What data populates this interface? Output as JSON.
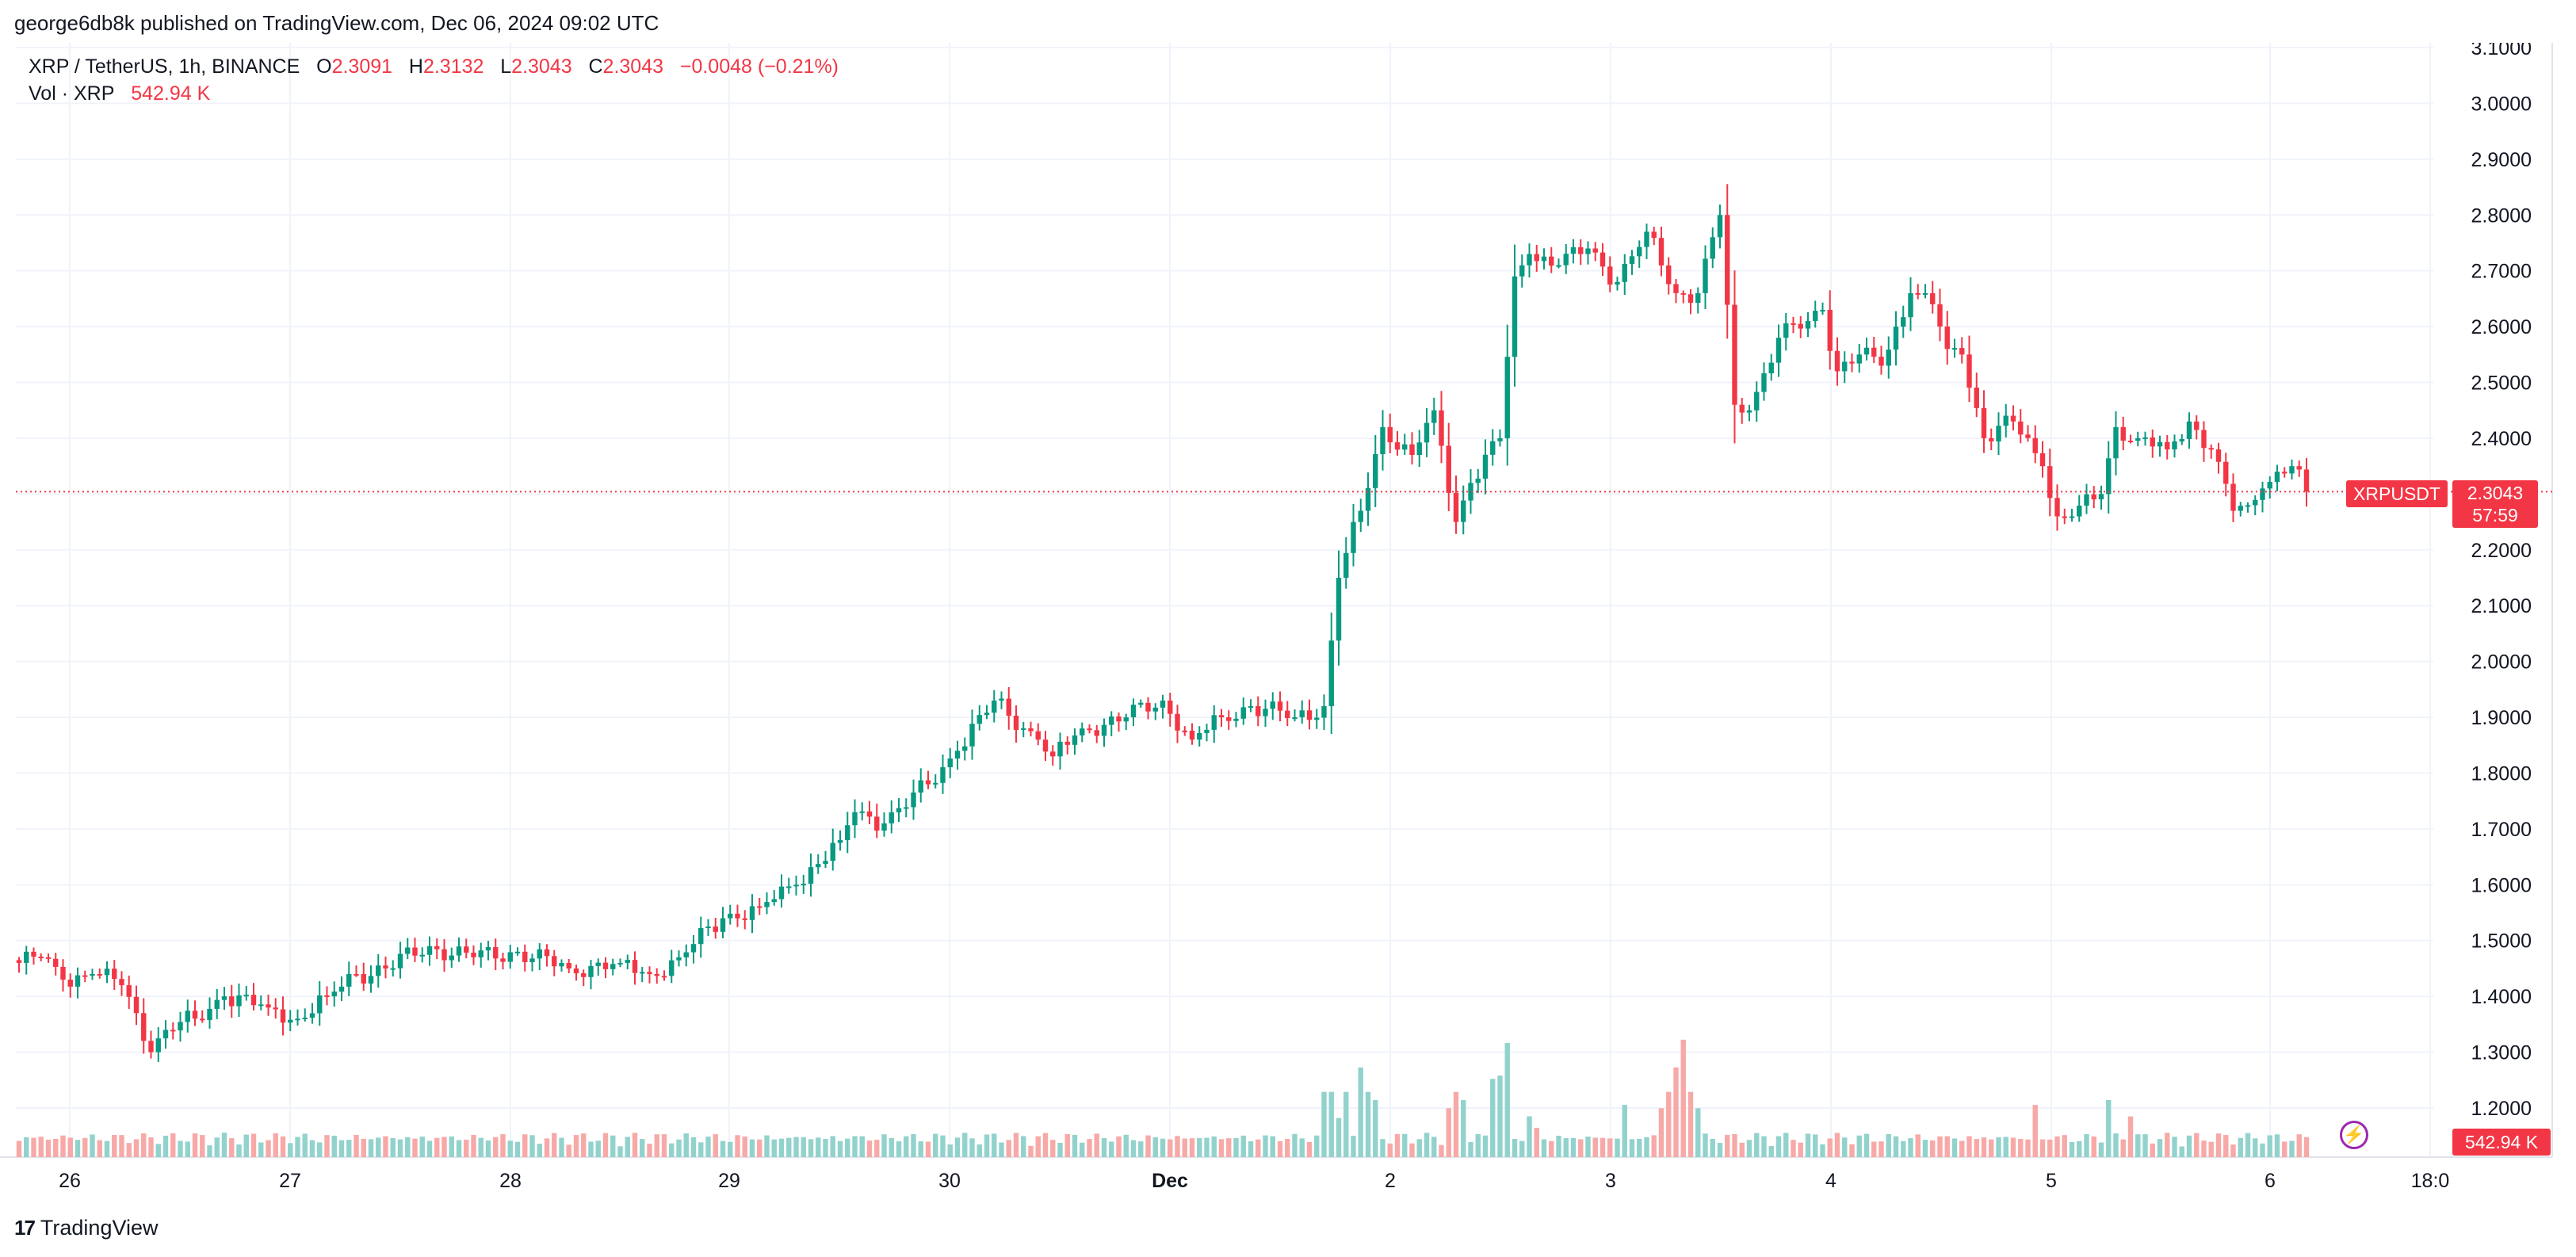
{
  "header": {
    "published": "george6db8k published on TradingView.com, Dec 06, 2024 09:02 UTC"
  },
  "legend": {
    "symbol": "XRP / TetherUS, 1h, BINANCE",
    "o_label": "O",
    "o": "2.3091",
    "h_label": "H",
    "h": "2.3132",
    "l_label": "L",
    "l": "2.3043",
    "c_label": "C",
    "c": "2.3043",
    "change": "−0.0048 (−0.21%)",
    "vol_label": "Vol · XRP",
    "vol_value": "542.94 K"
  },
  "tags": {
    "symbol": "XRPUSDT",
    "price": "2.3043",
    "countdown": "57:59",
    "volume": "542.94 K"
  },
  "footer": {
    "brand": "TradingView",
    "brand_mark": "17"
  },
  "colors": {
    "up": "#089981",
    "down": "#f23645",
    "vol_up": "#92d2cc",
    "vol_down": "#f7a9a7",
    "grid": "#f0f3fa",
    "text": "#131722"
  },
  "icons": [
    "flash-icon",
    "tradingview-logo-icon"
  ],
  "chart_data": {
    "type": "candlestick",
    "symbol": "XRP / TetherUS",
    "interval": "1h",
    "exchange": "BINANCE",
    "y_axis": {
      "position": "right",
      "ylim": [
        1.15,
        3.1
      ],
      "ticks": [
        3.1,
        3.0,
        2.9,
        2.8,
        2.7,
        2.6,
        2.5,
        2.4,
        2.3,
        2.2,
        2.1,
        2.0,
        1.9,
        1.8,
        1.7,
        1.6,
        1.5,
        1.4,
        1.3,
        1.2
      ],
      "tick_labels": [
        "3.1000",
        "3.0000",
        "2.9000",
        "2.8000",
        "2.7000",
        "2.6000",
        "2.5000",
        "2.4000",
        "2.3000",
        "2.2000",
        "2.1000",
        "2.0000",
        "1.9000",
        "1.8000",
        "1.7000",
        "1.6000",
        "1.5000",
        "1.4000",
        "1.3000",
        "1.2000"
      ]
    },
    "x_axis": {
      "tick_labels": [
        "26",
        "27",
        "28",
        "29",
        "30",
        "Dec",
        "2",
        "3",
        "4",
        "5",
        "6",
        "18:0"
      ],
      "bold_labels": [
        "Dec"
      ]
    },
    "last_price": 2.3043,
    "grid": true,
    "anchors": [
      [
        0,
        1.46
      ],
      [
        3,
        1.47
      ],
      [
        6,
        1.43
      ],
      [
        10,
        1.44
      ],
      [
        14,
        1.42
      ],
      [
        16,
        1.37
      ],
      [
        18,
        1.3
      ],
      [
        20,
        1.34
      ],
      [
        24,
        1.36
      ],
      [
        28,
        1.4
      ],
      [
        34,
        1.38
      ],
      [
        38,
        1.36
      ],
      [
        42,
        1.4
      ],
      [
        46,
        1.44
      ],
      [
        50,
        1.45
      ],
      [
        56,
        1.49
      ],
      [
        62,
        1.47
      ],
      [
        68,
        1.48
      ],
      [
        75,
        1.45
      ],
      [
        82,
        1.46
      ],
      [
        86,
        1.44
      ],
      [
        90,
        1.47
      ],
      [
        96,
        1.54
      ],
      [
        101,
        1.56
      ],
      [
        106,
        1.6
      ],
      [
        112,
        1.68
      ],
      [
        114,
        1.73
      ],
      [
        118,
        1.71
      ],
      [
        124,
        1.78
      ],
      [
        128,
        1.84
      ],
      [
        133,
        1.93
      ],
      [
        139,
        1.86
      ],
      [
        141,
        1.83
      ],
      [
        145,
        1.88
      ],
      [
        151,
        1.9
      ],
      [
        156,
        1.93
      ],
      [
        160,
        1.86
      ],
      [
        164,
        1.9
      ],
      [
        168,
        1.92
      ],
      [
        174,
        1.9
      ],
      [
        178,
        1.92
      ],
      [
        180,
        2.15
      ],
      [
        183,
        2.27
      ],
      [
        186,
        2.42
      ],
      [
        190,
        2.37
      ],
      [
        193,
        2.45
      ],
      [
        196,
        2.25
      ],
      [
        198,
        2.32
      ],
      [
        202,
        2.4
      ],
      [
        204,
        2.69
      ],
      [
        206,
        2.73
      ],
      [
        210,
        2.71
      ],
      [
        214,
        2.74
      ],
      [
        218,
        2.68
      ],
      [
        222,
        2.77
      ],
      [
        226,
        2.66
      ],
      [
        229,
        2.66
      ],
      [
        232,
        2.8
      ],
      [
        234,
        2.46
      ],
      [
        236,
        2.45
      ],
      [
        240,
        2.58
      ],
      [
        244,
        2.61
      ],
      [
        246,
        2.63
      ],
      [
        248,
        2.52
      ],
      [
        251,
        2.55
      ],
      [
        254,
        2.53
      ],
      [
        258,
        2.66
      ],
      [
        261,
        2.64
      ],
      [
        263,
        2.56
      ],
      [
        265,
        2.55
      ],
      [
        268,
        2.4
      ],
      [
        272,
        2.43
      ],
      [
        276,
        2.35
      ],
      [
        278,
        2.26
      ],
      [
        280,
        2.26
      ],
      [
        284,
        2.3
      ],
      [
        286,
        2.42
      ],
      [
        289,
        2.4
      ],
      [
        293,
        2.38
      ],
      [
        296,
        2.43
      ],
      [
        299,
        2.38
      ],
      [
        302,
        2.27
      ],
      [
        304,
        2.28
      ],
      [
        306,
        2.31
      ],
      [
        308,
        2.34
      ],
      [
        310,
        2.35
      ],
      [
        312,
        2.3043
      ]
    ],
    "first_bar_time": "Nov 25 ~21:00 UTC",
    "bars_per_day": 24,
    "volume": {
      "label": "Vol · XRP",
      "last": "542.94 K",
      "spikes": [
        [
          178,
          [
            0.4,
            0.4,
            0.24,
            0.4
          ]
        ],
        [
          183,
          [
            0.55,
            0.4,
            0.35
          ]
        ],
        [
          195,
          [
            0.3,
            0.4,
            0.35
          ]
        ],
        [
          201,
          [
            0.48,
            0.5,
            0.7
          ]
        ],
        [
          206,
          [
            0.25,
            0.18
          ]
        ],
        [
          219,
          [
            0.32
          ]
        ],
        [
          224,
          [
            0.3,
            0.4,
            0.55,
            0.72,
            0.4,
            0.3
          ]
        ],
        [
          275,
          [
            0.32
          ]
        ],
        [
          285,
          [
            0.35
          ]
        ],
        [
          288,
          [
            0.25
          ]
        ]
      ]
    }
  }
}
